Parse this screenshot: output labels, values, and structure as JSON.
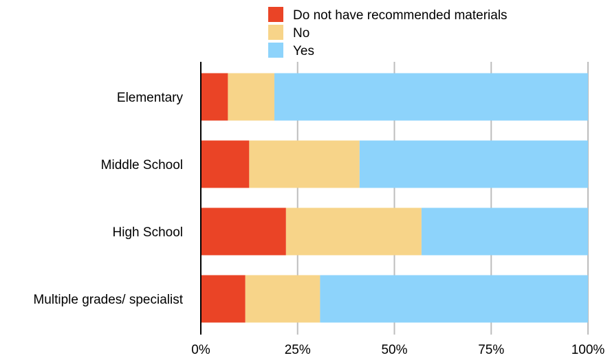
{
  "chart_data": {
    "type": "bar",
    "orientation": "horizontal",
    "stacked": true,
    "normalized_percent": true,
    "categories": [
      "Elementary",
      "Middle School",
      "High School",
      "Multiple grades/ specialist"
    ],
    "series": [
      {
        "name": "Do not have recommended materials",
        "color": "#EA4426",
        "values": [
          7,
          12.5,
          22,
          11.5
        ]
      },
      {
        "name": "No",
        "color": "#F7D489",
        "values": [
          12,
          28.5,
          35,
          19.3
        ]
      },
      {
        "name": "Yes",
        "color": "#8DD3FB",
        "values": [
          81,
          59,
          43,
          69.2
        ]
      }
    ],
    "xlim": [
      0,
      100
    ],
    "x_ticks": [
      0,
      25,
      50,
      75,
      100
    ],
    "x_tick_labels": [
      "0%",
      "25%",
      "50%",
      "75%",
      "100%"
    ],
    "grid": true,
    "legend_position": "top",
    "title": "",
    "xlabel": "",
    "ylabel": ""
  }
}
